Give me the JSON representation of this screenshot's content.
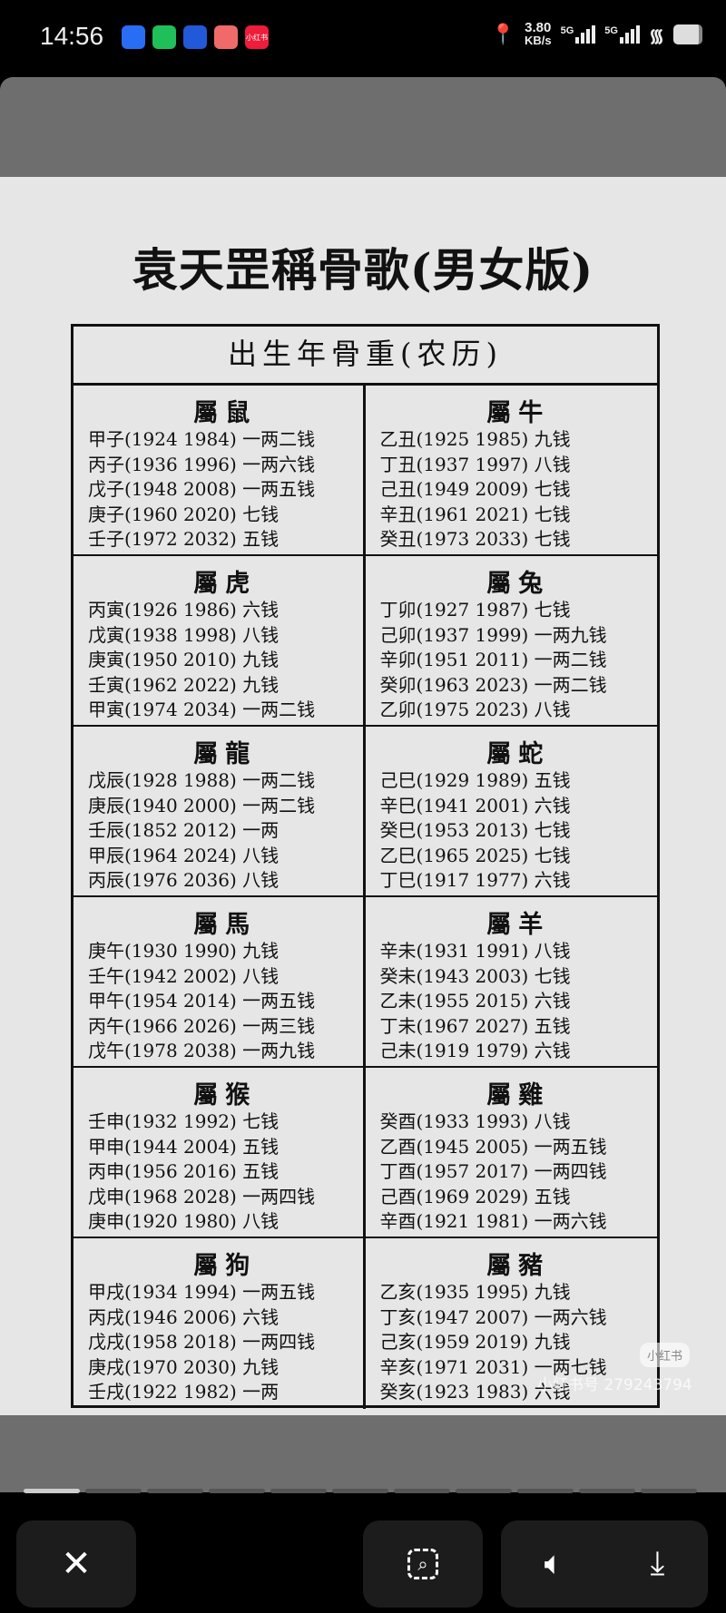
{
  "status": {
    "time": "14:56",
    "speed": "3.80",
    "speed_unit": "KB/s",
    "net1": "5G",
    "net2": "5G",
    "apps": [
      {
        "icon": "baidu-icon",
        "color": "#2a6df5"
      },
      {
        "icon": "wechat-icon",
        "color": "#1fbf5a"
      },
      {
        "icon": "app-icon",
        "color": "#2259d8"
      },
      {
        "icon": "app-icon",
        "color": "#f06a6a"
      },
      {
        "icon": "xiaohongshu-icon",
        "color": "#ef1c3a",
        "label": "小红书"
      }
    ]
  },
  "doc": {
    "title": "袁天罡稱骨歌(男女版)",
    "table_header": "出生年骨重(农历)",
    "cells": [
      {
        "zodiac": "屬鼠",
        "rows": [
          "甲子(1924 1984) 一两二钱",
          "丙子(1936 1996) 一两六钱",
          "戊子(1948 2008) 一两五钱",
          "庚子(1960 2020) 七钱",
          "壬子(1972 2032) 五钱"
        ]
      },
      {
        "zodiac": "屬牛",
        "rows": [
          "乙丑(1925 1985) 九钱",
          "丁丑(1937 1997) 八钱",
          "己丑(1949 2009) 七钱",
          "辛丑(1961 2021) 七钱",
          "癸丑(1973 2033) 七钱"
        ]
      },
      {
        "zodiac": "屬虎",
        "rows": [
          "丙寅(1926 1986) 六钱",
          "戊寅(1938 1998) 八钱",
          "庚寅(1950 2010) 九钱",
          "壬寅(1962 2022) 九钱",
          "甲寅(1974 2034) 一两二钱"
        ]
      },
      {
        "zodiac": "屬兔",
        "rows": [
          "丁卯(1927 1987) 七钱",
          "己卯(1937 1999) 一两九钱",
          "辛卯(1951 2011) 一两二钱",
          "癸卯(1963 2023) 一两二钱",
          "乙卯(1975 2023) 八钱"
        ]
      },
      {
        "zodiac": "屬龍",
        "rows": [
          "戊辰(1928 1988) 一两二钱",
          "庚辰(1940 2000) 一两二钱",
          "壬辰(1852 2012) 一两",
          "甲辰(1964 2024) 八钱",
          "丙辰(1976 2036) 八钱"
        ]
      },
      {
        "zodiac": "屬蛇",
        "rows": [
          "己巳(1929 1989) 五钱",
          "辛巳(1941 2001) 六钱",
          "癸巳(1953 2013) 七钱",
          "乙巳(1965 2025) 七钱",
          "丁巳(1917 1977) 六钱"
        ]
      },
      {
        "zodiac": "屬馬",
        "rows": [
          "庚午(1930 1990) 九钱",
          "壬午(1942 2002) 八钱",
          "甲午(1954 2014) 一两五钱",
          "丙午(1966 2026) 一两三钱",
          "戊午(1978 2038) 一两九钱"
        ]
      },
      {
        "zodiac": "屬羊",
        "rows": [
          "辛未(1931 1991) 八钱",
          "癸未(1943 2003) 七钱",
          "乙未(1955 2015) 六钱",
          "丁未(1967 2027) 五钱",
          "己未(1919 1979) 六钱"
        ]
      },
      {
        "zodiac": "屬猴",
        "rows": [
          "壬申(1932 1992) 七钱",
          "甲申(1944 2004) 五钱",
          "丙申(1956 2016) 五钱",
          "戊申(1968 2028) 一两四钱",
          "庚申(1920 1980) 八钱"
        ]
      },
      {
        "zodiac": "屬雞",
        "rows": [
          "癸酉(1933 1993) 八钱",
          "乙酉(1945 2005) 一两五钱",
          "丁酉(1957 2017) 一两四钱",
          "己酉(1969 2029) 五钱",
          "辛酉(1921 1981) 一两六钱"
        ]
      },
      {
        "zodiac": "屬狗",
        "rows": [
          "甲戌(1934 1994) 一两五钱",
          "丙戌(1946 2006) 六钱",
          "戊戌(1958 2018) 一两四钱",
          "庚戌(1970 2030) 九钱",
          "壬戌(1922 1982) 一两"
        ]
      },
      {
        "zodiac": "屬豬",
        "rows": [
          "乙亥(1935 1995) 九钱",
          "丁亥(1947 2007) 一两六钱",
          "己亥(1959 2019) 九钱",
          "辛亥(1971 2031) 一两七钱",
          "癸亥(1923 1983) 六钱"
        ]
      }
    ],
    "watermark": "小红书号 279243794",
    "watermark_badge": "小红书"
  },
  "viewer": {
    "page_count": 11,
    "current_page": 1,
    "buttons": [
      {
        "icon": "close-icon"
      },
      {
        "icon": "image-search-icon"
      },
      {
        "icon": "volume-icon"
      },
      {
        "icon": "download-icon"
      }
    ]
  }
}
